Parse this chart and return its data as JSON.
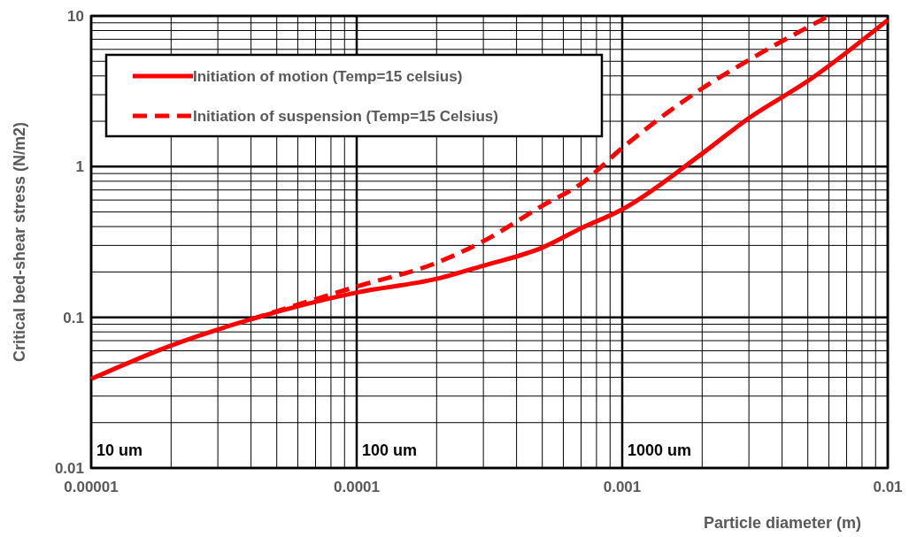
{
  "chart_data": {
    "type": "line",
    "xlabel": "Particle diameter (m)",
    "ylabel": "Critical bed-shear stress (N/m2)",
    "log": "xy",
    "grid": true,
    "legend": "top left",
    "xlim": [
      1e-05,
      0.01
    ],
    "ylim": [
      0.01,
      10
    ],
    "xticks": [
      {
        "value": 1e-05,
        "label": "0.00001"
      },
      {
        "value": 2e-05,
        "label": null
      },
      {
        "value": 3e-05,
        "label": null
      },
      {
        "value": 4e-05,
        "label": null
      },
      {
        "value": 5e-05,
        "label": null
      },
      {
        "value": 6e-05,
        "label": null
      },
      {
        "value": 7e-05,
        "label": null
      },
      {
        "value": 8e-05,
        "label": null
      },
      {
        "value": 9e-05,
        "label": null
      },
      {
        "value": 0.0001,
        "label": "0.0001"
      },
      {
        "value": 0.0002,
        "label": null
      },
      {
        "value": 0.0003,
        "label": null
      },
      {
        "value": 0.0004,
        "label": null
      },
      {
        "value": 0.0005,
        "label": null
      },
      {
        "value": 0.0006,
        "label": null
      },
      {
        "value": 0.0007,
        "label": null
      },
      {
        "value": 0.0008,
        "label": null
      },
      {
        "value": 0.0009,
        "label": null
      },
      {
        "value": 0.001,
        "label": "0.001"
      },
      {
        "value": 0.002,
        "label": null
      },
      {
        "value": 0.003,
        "label": null
      },
      {
        "value": 0.004,
        "label": null
      },
      {
        "value": 0.005,
        "label": null
      },
      {
        "value": 0.006,
        "label": null
      },
      {
        "value": 0.007,
        "label": null
      },
      {
        "value": 0.008,
        "label": null
      },
      {
        "value": 0.009,
        "label": null
      },
      {
        "value": 0.01,
        "label": "0.01"
      }
    ],
    "yticks": [
      {
        "value": 0.01,
        "label": "0.01"
      },
      {
        "value": 0.02,
        "label": null
      },
      {
        "value": 0.03,
        "label": null
      },
      {
        "value": 0.04,
        "label": null
      },
      {
        "value": 0.05,
        "label": null
      },
      {
        "value": 0.06,
        "label": null
      },
      {
        "value": 0.07,
        "label": null
      },
      {
        "value": 0.08,
        "label": null
      },
      {
        "value": 0.09,
        "label": null
      },
      {
        "value": 0.1,
        "label": "0.1"
      },
      {
        "value": 0.2,
        "label": null
      },
      {
        "value": 0.3,
        "label": null
      },
      {
        "value": 0.4,
        "label": null
      },
      {
        "value": 0.5,
        "label": null
      },
      {
        "value": 0.6,
        "label": null
      },
      {
        "value": 0.7,
        "label": null
      },
      {
        "value": 0.8,
        "label": null
      },
      {
        "value": 0.9,
        "label": null
      },
      {
        "value": 1,
        "label": "1"
      },
      {
        "value": 2,
        "label": null
      },
      {
        "value": 3,
        "label": null
      },
      {
        "value": 4,
        "label": null
      },
      {
        "value": 5,
        "label": null
      },
      {
        "value": 6,
        "label": null
      },
      {
        "value": 7,
        "label": null
      },
      {
        "value": 8,
        "label": null
      },
      {
        "value": 9,
        "label": null
      },
      {
        "value": 10,
        "label": "10"
      }
    ],
    "series": [
      {
        "name": "Initiation of motion (Temp=15 celsius)",
        "color": "#ff0000",
        "line_style": "solid",
        "x": [
          1e-05,
          2e-05,
          4e-05,
          0.0001,
          0.0002,
          0.0003,
          0.0005,
          0.0007,
          0.001,
          0.002,
          0.003,
          0.005,
          0.01
        ],
        "values": [
          0.039,
          0.065,
          0.097,
          0.146,
          0.18,
          0.22,
          0.29,
          0.39,
          0.52,
          1.22,
          2.1,
          3.7,
          9.4
        ]
      },
      {
        "name": "Initiation of suspension (Temp=15 Celsius)",
        "color": "#ff0000",
        "line_style": "dashed",
        "x": [
          4e-05,
          0.0001,
          0.0002,
          0.0003,
          0.0005,
          0.0007,
          0.001,
          0.002,
          0.003,
          0.006
        ],
        "values": [
          0.097,
          0.16,
          0.23,
          0.32,
          0.55,
          0.77,
          1.33,
          3.3,
          5.1,
          10
        ]
      }
    ],
    "annotations": [
      "10 um",
      "100 um",
      "1000 um"
    ]
  }
}
